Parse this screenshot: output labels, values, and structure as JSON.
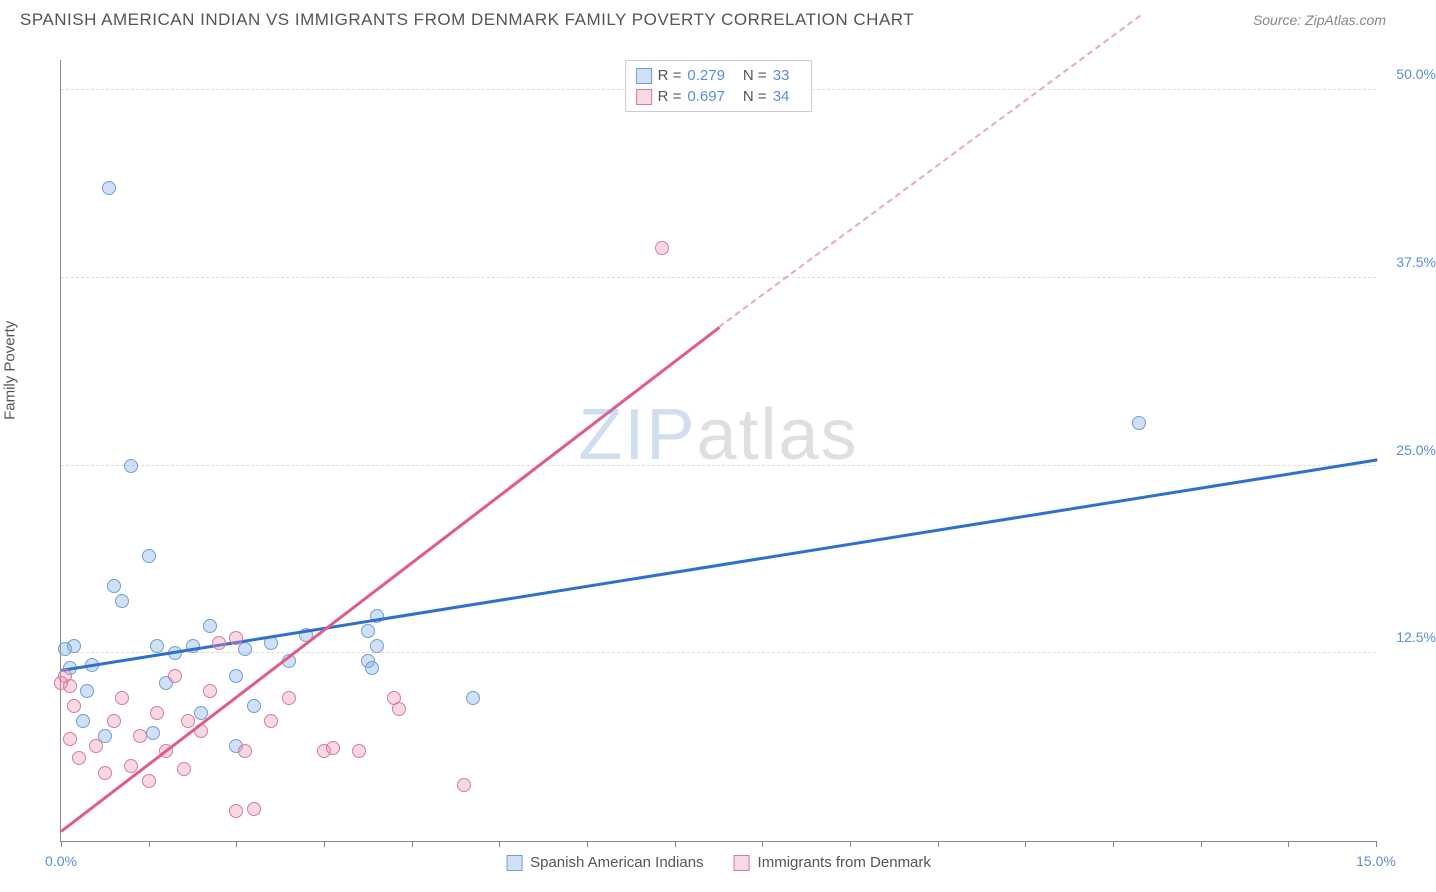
{
  "header": {
    "title": "SPANISH AMERICAN INDIAN VS IMMIGRANTS FROM DENMARK FAMILY POVERTY CORRELATION CHART",
    "source": "Source: ZipAtlas.com"
  },
  "watermark": {
    "part1": "ZIP",
    "part2": "atlas"
  },
  "chart": {
    "type": "scatter",
    "ylabel": "Family Poverty",
    "xlim": [
      0,
      15
    ],
    "ylim": [
      0,
      52
    ],
    "yticks": [
      {
        "v": 12.5,
        "label": "12.5%"
      },
      {
        "v": 25.0,
        "label": "25.0%"
      },
      {
        "v": 37.5,
        "label": "37.5%"
      },
      {
        "v": 50.0,
        "label": "50.0%"
      }
    ],
    "xticks_minor": [
      0,
      1,
      2,
      3,
      4,
      5,
      6,
      7,
      8,
      9,
      10,
      11,
      12,
      13,
      14,
      15
    ],
    "xtick_labels": [
      {
        "v": 0,
        "label": "0.0%"
      },
      {
        "v": 15,
        "label": "15.0%"
      }
    ],
    "background_color": "#ffffff",
    "grid_color": "#dddddd",
    "axis_color": "#888888",
    "point_radius": 7,
    "point_stroke_width": 1,
    "series": [
      {
        "name": "Spanish American Indians",
        "color_fill": "rgba(120,165,225,0.35)",
        "color_stroke": "#6f9fd8",
        "R": 0.279,
        "N": 33,
        "trend": {
          "x1": 0,
          "y1": 11.5,
          "x2": 15,
          "y2": 25.5,
          "color": "#2f6fd0",
          "width": 2.5,
          "dash": false
        },
        "points": [
          [
            0.55,
            43.5
          ],
          [
            0.05,
            12.8
          ],
          [
            0.1,
            11.5
          ],
          [
            0.15,
            13.0
          ],
          [
            0.3,
            10.0
          ],
          [
            0.35,
            11.7
          ],
          [
            0.6,
            17.0
          ],
          [
            0.7,
            16.0
          ],
          [
            0.8,
            25.0
          ],
          [
            1.0,
            19.0
          ],
          [
            1.1,
            13.0
          ],
          [
            1.2,
            10.5
          ],
          [
            1.3,
            12.5
          ],
          [
            1.5,
            13.0
          ],
          [
            1.7,
            14.3
          ],
          [
            1.6,
            8.5
          ],
          [
            2.0,
            6.3
          ],
          [
            2.0,
            11.0
          ],
          [
            2.1,
            12.8
          ],
          [
            2.2,
            9.0
          ],
          [
            2.4,
            13.2
          ],
          [
            2.6,
            12.0
          ],
          [
            2.8,
            13.7
          ],
          [
            3.5,
            12.0
          ],
          [
            3.5,
            14.0
          ],
          [
            3.55,
            11.5
          ],
          [
            3.6,
            13.0
          ],
          [
            3.6,
            15.0
          ],
          [
            4.7,
            9.5
          ],
          [
            12.3,
            27.8
          ],
          [
            0.25,
            8.0
          ],
          [
            0.5,
            7.0
          ],
          [
            1.05,
            7.2
          ]
        ]
      },
      {
        "name": "Immigrants from Denmark",
        "color_fill": "rgba(235,145,175,0.35)",
        "color_stroke": "#d77aa0",
        "R": 0.697,
        "N": 34,
        "trend_solid": {
          "x1": 0,
          "y1": 0.8,
          "x2": 7.5,
          "y2": 34.3,
          "color": "#e05a8a",
          "width": 2.5
        },
        "trend_dash": {
          "x1": 7.5,
          "y1": 34.3,
          "x2": 12.3,
          "y2": 55.0,
          "color": "#e8a8c0",
          "width": 2
        },
        "points": [
          [
            0.05,
            11.0
          ],
          [
            0.1,
            10.3
          ],
          [
            0.1,
            6.8
          ],
          [
            0.15,
            9.0
          ],
          [
            0.2,
            5.5
          ],
          [
            0.4,
            6.3
          ],
          [
            0.5,
            4.5
          ],
          [
            0.6,
            8.0
          ],
          [
            0.7,
            9.5
          ],
          [
            0.8,
            5.0
          ],
          [
            0.9,
            7.0
          ],
          [
            1.0,
            4.0
          ],
          [
            1.1,
            8.5
          ],
          [
            1.2,
            6.0
          ],
          [
            1.3,
            11.0
          ],
          [
            1.4,
            4.8
          ],
          [
            1.45,
            8.0
          ],
          [
            1.6,
            7.3
          ],
          [
            1.7,
            10.0
          ],
          [
            1.8,
            13.2
          ],
          [
            2.0,
            13.5
          ],
          [
            2.0,
            2.0
          ],
          [
            2.1,
            6.0
          ],
          [
            2.2,
            2.1
          ],
          [
            2.4,
            8.0
          ],
          [
            2.6,
            9.5
          ],
          [
            3.0,
            6.0
          ],
          [
            3.1,
            6.2
          ],
          [
            3.4,
            6.0
          ],
          [
            3.8,
            9.5
          ],
          [
            3.85,
            8.8
          ],
          [
            4.6,
            3.7
          ],
          [
            6.85,
            39.5
          ],
          [
            0.0,
            10.5
          ]
        ]
      }
    ],
    "legend_top": {
      "R_label": "R =",
      "N_label": "N =",
      "value_color": "#5b8fd6",
      "label_color": "#555555"
    },
    "legend_bottom_labels": [
      "Spanish American Indians",
      "Immigrants from Denmark"
    ]
  }
}
